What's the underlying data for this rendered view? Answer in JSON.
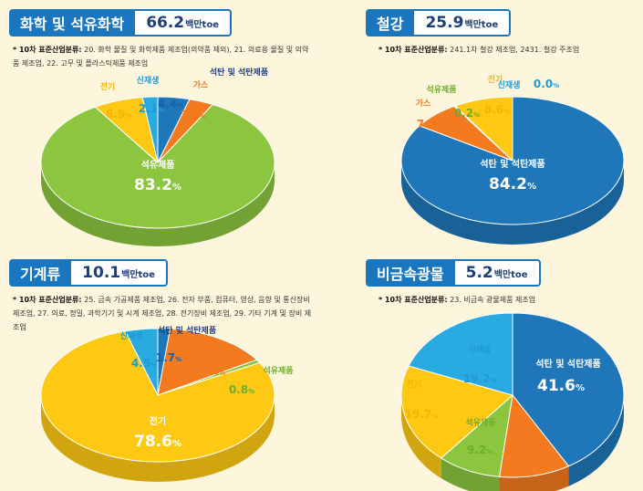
{
  "colors": {
    "coal": "#1f77b9",
    "gas": "#f47a1f",
    "oil": "#8cc63f",
    "elec": "#ffc913",
    "renew": "#29abe2",
    "header": "#1a77bf"
  },
  "panels": [
    {
      "title": "화학 및 석유화학",
      "value": "66.2",
      "unit": "백만toe",
      "note_bold": "* 10차 표준산업분류:",
      "note": "20. 화학 물질 및 화학제품 제조업(의약품 제외), 21. 의료용 물질 및 의약품 제조업, 22. 고무 및 플라스틱제품 제조업"
    },
    {
      "title": "철강",
      "value": "25.9",
      "unit": "백만toe",
      "note_bold": "* 10차 표준산업분류:",
      "note": "241.1차 철강 제조업, 2431. 철강 주조업"
    },
    {
      "title": "기계류",
      "value": "10.1",
      "unit": "백만toe",
      "note_bold": "* 10차 표준산업분류:",
      "note": "25. 금속 가공제품 제조업, 26. 전자 부품, 컴퓨터, 영상, 음향 및 통신장비 제조업, 27. 의료, 정밀, 과학기기 및 시계 제조업, 28. 전기장비 제조업, 29. 기타 기계 및 장비 제조업"
    },
    {
      "title": "비금속광물",
      "value": "5.2",
      "unit": "백만toe",
      "note_bold": "* 10차 표준산업분류:",
      "note": "23. 비금속 광물제품 제조업"
    }
  ],
  "chart_data": [
    {
      "type": "pie",
      "title": "화학 및 석유화학 66.2백만toe",
      "slices": [
        {
          "label": "석탄 및 석탄제품",
          "value": 4.4,
          "color": "coal"
        },
        {
          "label": "가스",
          "value": 3.4,
          "color": "gas"
        },
        {
          "label": "석유제품",
          "value": 83.2,
          "color": "oil"
        },
        {
          "label": "전기",
          "value": 6.9,
          "color": "elec"
        },
        {
          "label": "신재생",
          "value": 2.1,
          "color": "renew"
        }
      ]
    },
    {
      "type": "pie",
      "title": "철강 25.9백만toe",
      "slices": [
        {
          "label": "석탄 및 석탄제품",
          "value": 84.2,
          "color": "coal"
        },
        {
          "label": "가스",
          "value": 7.0,
          "color": "gas"
        },
        {
          "label": "석유제품",
          "value": 0.2,
          "color": "oil"
        },
        {
          "label": "전기",
          "value": 8.6,
          "color": "elec"
        },
        {
          "label": "신재생",
          "value": 0.0,
          "color": "renew"
        }
      ]
    },
    {
      "type": "pie",
      "title": "기계류 10.1백만toe",
      "slices": [
        {
          "label": "석탄 및 석탄제품",
          "value": 1.7,
          "color": "coal"
        },
        {
          "label": "가스",
          "value": 14.4,
          "color": "gas"
        },
        {
          "label": "석유제품",
          "value": 0.8,
          "color": "oil"
        },
        {
          "label": "전기",
          "value": 78.6,
          "color": "elec"
        },
        {
          "label": "신재생",
          "value": 4.5,
          "color": "renew"
        }
      ]
    },
    {
      "type": "pie",
      "title": "비금속광물 5.2백만toe",
      "slices": [
        {
          "label": "석탄 및 석탄제품",
          "value": 41.6,
          "color": "coal"
        },
        {
          "label": "가스",
          "value": 10.3,
          "color": "gas"
        },
        {
          "label": "석유제품",
          "value": 9.2,
          "color": "oil"
        },
        {
          "label": "전기",
          "value": 19.7,
          "color": "elec"
        },
        {
          "label": "신재생",
          "value": 19.2,
          "color": "renew"
        }
      ]
    }
  ]
}
